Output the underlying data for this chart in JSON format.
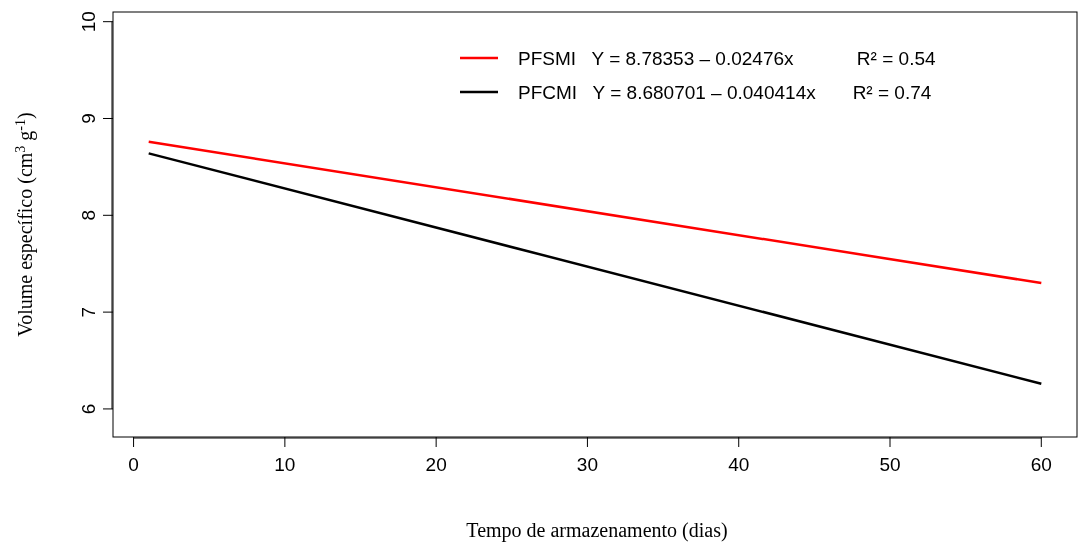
{
  "chart_data": {
    "type": "line",
    "xlabel": "Tempo de armazenamento (dias)",
    "ylabel": "Volume específico (cm$^{3}$ g$^{-1}$)",
    "xlim": [
      -1.36,
      62.36
    ],
    "ylim": [
      5.71,
      10.1
    ],
    "xticks": [
      0,
      10,
      20,
      30,
      40,
      50,
      60
    ],
    "yticks": [
      6,
      7,
      8,
      9,
      10
    ],
    "x": [
      1,
      60
    ],
    "legend": "top right",
    "grid": false,
    "marker": "none",
    "line_style": "solid",
    "series": [
      {
        "name": "PFSMI   Y = 8.78353 – 0.02476x            R² = 0.54",
        "color": "#ff0000",
        "values": [
          8.76,
          7.3
        ]
      },
      {
        "name": "PFCMI   Y = 8.680701 – 0.040414x       R² = 0.74",
        "color": "#000000",
        "values": [
          8.64,
          6.26
        ]
      }
    ]
  }
}
